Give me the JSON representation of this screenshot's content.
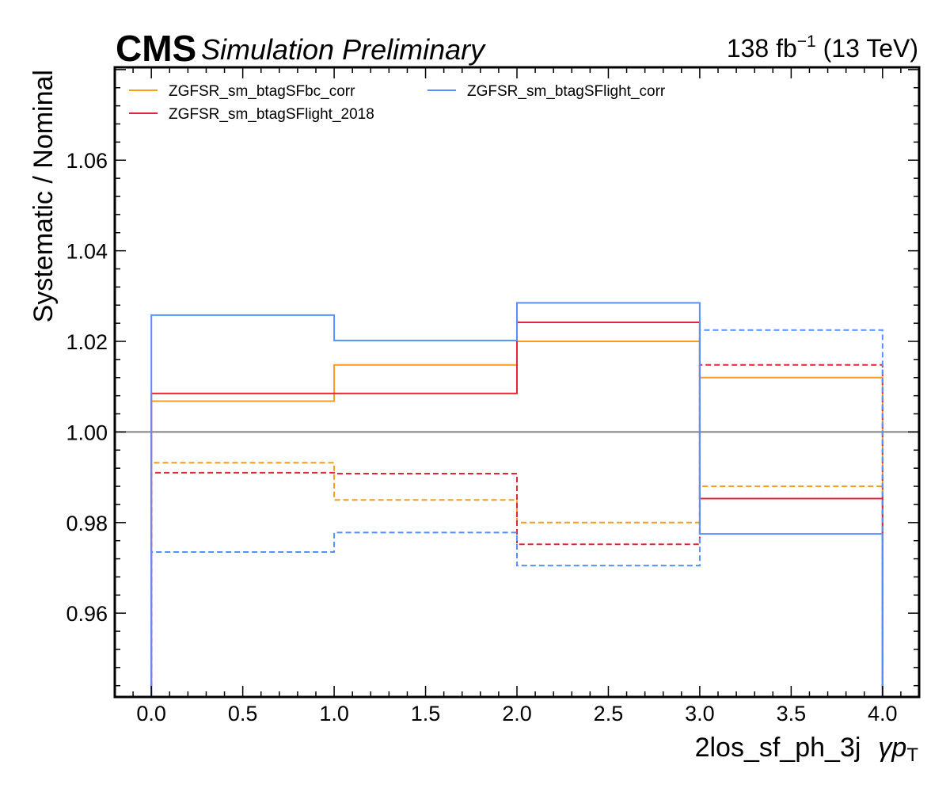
{
  "header": {
    "experiment": "CMS",
    "status": "Simulation Preliminary",
    "lumi_value": "138 fb",
    "lumi_exponent": "−1",
    "energy": " (13 TeV)"
  },
  "chart_data": {
    "type": "line",
    "style": "step",
    "xlabel": "2los_sf_ph_3j",
    "xlabel_extra": "γp",
    "xlabel_extra_sub": "T",
    "ylabel": "Systematic / Nominal",
    "xlim": [
      -0.2,
      4.2
    ],
    "ylim": [
      0.9415,
      1.0805
    ],
    "xticks": [
      0.0,
      0.5,
      1.0,
      1.5,
      2.0,
      2.5,
      3.0,
      3.5,
      4.0
    ],
    "xtick_labels": [
      "0.0",
      "0.5",
      "1.0",
      "1.5",
      "2.0",
      "2.5",
      "3.0",
      "3.5",
      "4.0"
    ],
    "yticks": [
      0.96,
      0.98,
      1.0,
      1.02,
      1.04,
      1.06
    ],
    "ytick_labels": [
      "0.96",
      "0.98",
      "1.00",
      "1.02",
      "1.04",
      "1.06"
    ],
    "bin_edges": [
      0,
      1,
      2,
      3,
      4
    ],
    "reference_line": {
      "y": 1.0,
      "color": "#808080"
    },
    "legend_position": "top-left",
    "series": [
      {
        "name": "ZGFSR_sm_btagSFbc_corr",
        "color": "#f89c20",
        "up": [
          1.0068,
          1.0148,
          1.02,
          1.012
        ],
        "down": [
          0.9932,
          0.985,
          0.98,
          0.988
        ]
      },
      {
        "name": "ZGFSR_sm_btagSFlight_2018",
        "color": "#e42536",
        "up": [
          1.0085,
          1.0085,
          1.0242,
          0.9853
        ],
        "down": [
          0.991,
          0.9908,
          0.9752,
          1.0148
        ]
      },
      {
        "name": "ZGFSR_sm_btagSFlight_corr",
        "color": "#5790fc",
        "up": [
          1.0258,
          1.0202,
          1.0285,
          0.9775
        ],
        "down": [
          0.9735,
          0.9778,
          0.9705,
          1.0225
        ]
      }
    ]
  }
}
